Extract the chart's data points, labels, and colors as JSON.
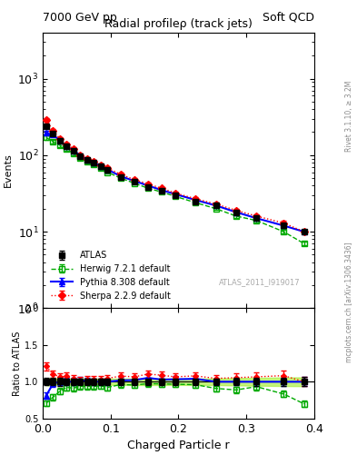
{
  "title_left": "7000 GeV pp",
  "title_right": "Soft QCD",
  "plot_title": "Radial profileρ (track jets)",
  "ylabel_main": "Events",
  "ylabel_ratio": "Ratio to ATLAS",
  "xlabel": "Charged Particle r",
  "rivet_label": "Rivet 3.1.10, ≥ 3.2M",
  "arxiv_label": "mcplots.cern.ch [arXiv:1306.3436]",
  "atlas_label": "ATLAS_2011_I919017",
  "xlim": [
    0.0,
    0.4
  ],
  "ylim_main": [
    1.0,
    4000
  ],
  "ylim_ratio": [
    0.5,
    2.0
  ],
  "x": [
    0.005,
    0.015,
    0.025,
    0.035,
    0.045,
    0.055,
    0.065,
    0.075,
    0.085,
    0.095,
    0.115,
    0.135,
    0.155,
    0.175,
    0.195,
    0.225,
    0.255,
    0.285,
    0.315,
    0.355,
    0.385
  ],
  "atlas_y": [
    240,
    190,
    155,
    130,
    115,
    98,
    87,
    80,
    72,
    65,
    52,
    45,
    38,
    34,
    30,
    25,
    22,
    18,
    15,
    12,
    10
  ],
  "atlas_yerr": [
    12,
    9,
    8,
    6,
    5,
    4.5,
    4,
    3.5,
    3,
    2.8,
    2.2,
    2,
    1.7,
    1.5,
    1.3,
    1.1,
    1.0,
    0.9,
    0.8,
    0.7,
    0.6
  ],
  "herwig_y": [
    170,
    150,
    135,
    120,
    105,
    92,
    82,
    75,
    68,
    60,
    50,
    43,
    37,
    33,
    29,
    24,
    20,
    16,
    14,
    10,
    7
  ],
  "herwig_yerr": [
    10,
    8,
    7,
    6,
    5,
    4,
    3.8,
    3.3,
    3,
    2.5,
    2,
    1.8,
    1.5,
    1.3,
    1.2,
    1.0,
    0.9,
    0.8,
    0.7,
    0.5,
    0.4
  ],
  "pythia_y": [
    195,
    185,
    155,
    130,
    115,
    100,
    88,
    80,
    72,
    65,
    53,
    46,
    40,
    35,
    31,
    26,
    22,
    18,
    15,
    12,
    10
  ],
  "pythia_yerr": [
    11,
    9,
    7.5,
    6.5,
    5.5,
    4.5,
    4,
    3.5,
    3.2,
    2.8,
    2.2,
    2.0,
    1.8,
    1.5,
    1.3,
    1.1,
    1.0,
    0.9,
    0.8,
    0.7,
    0.6
  ],
  "sherpa_y": [
    290,
    210,
    165,
    140,
    120,
    100,
    90,
    82,
    74,
    68,
    56,
    48,
    42,
    37,
    32,
    27,
    23,
    19,
    16,
    13,
    10
  ],
  "sherpa_yerr": [
    14,
    10,
    8,
    7,
    6,
    5,
    4.3,
    3.8,
    3.3,
    3.0,
    2.5,
    2.2,
    1.9,
    1.7,
    1.4,
    1.2,
    1.1,
    1.0,
    0.9,
    0.8,
    0.6
  ],
  "atlas_color": "#000000",
  "herwig_color": "#00aa00",
  "pythia_color": "#0000ff",
  "sherpa_color": "#ff0000",
  "band_color": "#aaee44",
  "atlas_ms": 5,
  "herwig_ms": 5,
  "pythia_ms": 5,
  "sherpa_ms": 4,
  "atlas_ms_ratio": 4,
  "herwig_ms_ratio": 4,
  "pythia_ms_ratio": 4,
  "sherpa_ms_ratio": 3
}
